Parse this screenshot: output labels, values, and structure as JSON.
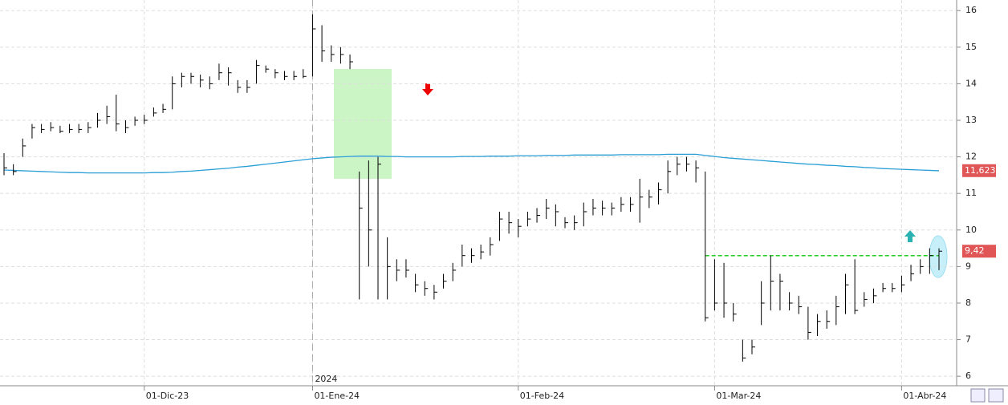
{
  "chart_data": {
    "type": "ohlc",
    "categories": [
      null,
      null,
      null,
      null,
      null,
      null,
      null,
      null,
      null,
      null,
      null,
      null,
      null,
      null,
      null,
      "01-Dic-23",
      null,
      null,
      null,
      null,
      null,
      null,
      null,
      null,
      null,
      null,
      null,
      null,
      null,
      null,
      null,
      null,
      null,
      "01-Ene-24",
      null,
      null,
      null,
      null,
      null,
      null,
      null,
      null,
      null,
      null,
      null,
      null,
      null,
      null,
      null,
      null,
      null,
      null,
      null,
      null,
      null,
      "01-Feb-24",
      null,
      null,
      null,
      null,
      null,
      null,
      null,
      null,
      null,
      null,
      null,
      null,
      null,
      null,
      null,
      null,
      null,
      null,
      null,
      null,
      "01-Mar-24",
      null,
      null,
      null,
      null,
      null,
      null,
      null,
      null,
      null,
      null,
      null,
      null,
      null,
      null,
      null,
      null,
      null,
      null,
      null,
      "01-Abr-24",
      null,
      null,
      null,
      null
    ],
    "high": [
      12.1,
      11.8,
      12.5,
      12.9,
      12.9,
      12.95,
      12.85,
      12.9,
      12.9,
      12.95,
      13.2,
      13.4,
      13.7,
      13.0,
      13.1,
      13.15,
      13.35,
      13.45,
      14.2,
      14.3,
      14.3,
      14.25,
      14.2,
      14.55,
      14.45,
      14.1,
      14.1,
      14.65,
      14.5,
      14.4,
      14.35,
      14.35,
      14.4,
      15.9,
      15.6,
      15.05,
      15.0,
      14.8,
      11.6,
      11.9,
      12.0,
      9.8,
      9.2,
      9.2,
      8.8,
      8.6,
      8.5,
      8.8,
      9.1,
      9.6,
      9.5,
      9.6,
      9.8,
      10.5,
      10.5,
      10.3,
      10.5,
      10.6,
      10.85,
      10.7,
      10.35,
      10.4,
      10.75,
      10.85,
      10.8,
      10.75,
      10.9,
      10.9,
      11.4,
      11.1,
      11.3,
      11.9,
      12.0,
      12.0,
      11.9,
      11.6,
      9.2,
      9.1,
      8.0,
      7.0,
      7.0,
      8.6,
      9.3,
      8.8,
      8.3,
      8.2,
      7.9,
      7.7,
      7.8,
      8.2,
      8.8,
      9.2,
      8.3,
      8.4,
      8.55,
      8.55,
      8.75,
      9.05,
      9.2,
      9.5,
      9.5
    ],
    "low": [
      11.5,
      11.5,
      12.0,
      12.5,
      12.65,
      12.7,
      12.65,
      12.65,
      12.65,
      12.65,
      12.8,
      12.9,
      12.7,
      12.65,
      12.85,
      12.9,
      13.1,
      13.2,
      13.3,
      13.9,
      14.0,
      13.9,
      13.85,
      14.1,
      13.95,
      13.75,
      13.75,
      14.0,
      14.3,
      14.15,
      14.1,
      14.1,
      14.15,
      14.2,
      14.6,
      14.6,
      14.55,
      14.4,
      8.1,
      9.0,
      8.1,
      8.1,
      8.6,
      8.7,
      8.3,
      8.2,
      8.1,
      8.4,
      8.6,
      9.0,
      9.1,
      9.2,
      9.3,
      9.7,
      9.9,
      9.8,
      10.1,
      10.2,
      10.3,
      10.1,
      10.05,
      10.0,
      10.1,
      10.4,
      10.4,
      10.4,
      10.5,
      10.5,
      10.2,
      10.6,
      10.7,
      11.0,
      11.5,
      11.6,
      11.3,
      7.5,
      7.8,
      7.6,
      7.5,
      6.4,
      6.6,
      7.4,
      7.8,
      7.8,
      7.8,
      7.7,
      7.0,
      7.1,
      7.3,
      7.4,
      7.7,
      7.7,
      7.9,
      8.0,
      8.3,
      8.3,
      8.3,
      8.6,
      8.8,
      8.8,
      8.9
    ],
    "close": [
      11.7,
      11.6,
      12.3,
      12.8,
      12.75,
      12.8,
      12.7,
      12.75,
      12.75,
      12.8,
      13.0,
      13.1,
      12.9,
      12.8,
      13.0,
      13.0,
      13.2,
      13.3,
      14.0,
      14.2,
      14.2,
      14.1,
      14.0,
      14.3,
      14.3,
      13.9,
      13.9,
      14.5,
      14.4,
      14.3,
      14.2,
      14.2,
      14.2,
      15.5,
      14.9,
      14.8,
      14.8,
      14.6,
      10.6,
      10.0,
      11.8,
      9.0,
      8.9,
      8.9,
      8.5,
      8.4,
      8.3,
      8.6,
      8.9,
      9.3,
      9.3,
      9.4,
      9.6,
      10.3,
      10.2,
      10.1,
      10.3,
      10.4,
      10.6,
      10.5,
      10.2,
      10.2,
      10.5,
      10.6,
      10.6,
      10.6,
      10.7,
      10.7,
      10.9,
      10.9,
      11.1,
      11.6,
      11.8,
      11.8,
      11.7,
      7.6,
      8.0,
      8.0,
      7.7,
      6.5,
      6.8,
      8.0,
      8.6,
      8.6,
      8.0,
      7.9,
      7.2,
      7.5,
      7.5,
      7.9,
      8.5,
      7.8,
      8.1,
      8.2,
      8.4,
      8.4,
      8.5,
      8.8,
      9.0,
      9.3,
      9.42
    ],
    "color": "#000000",
    "moving_average": {
      "color": "#2a9fd6",
      "values": [
        11.64,
        11.63,
        11.62,
        11.61,
        11.6,
        11.59,
        11.58,
        11.57,
        11.57,
        11.56,
        11.56,
        11.56,
        11.56,
        11.56,
        11.56,
        11.56,
        11.57,
        11.57,
        11.58,
        11.6,
        11.61,
        11.63,
        11.65,
        11.67,
        11.69,
        11.72,
        11.74,
        11.77,
        11.8,
        11.83,
        11.86,
        11.89,
        11.92,
        11.95,
        11.97,
        11.99,
        12.0,
        12.01,
        12.02,
        12.02,
        12.02,
        12.01,
        12.01,
        12.0,
        12.0,
        12.0,
        12.0,
        12.0,
        12.0,
        12.01,
        12.01,
        12.01,
        12.02,
        12.02,
        12.02,
        12.03,
        12.03,
        12.03,
        12.04,
        12.04,
        12.04,
        12.05,
        12.05,
        12.05,
        12.05,
        12.05,
        12.06,
        12.06,
        12.06,
        12.06,
        12.06,
        12.07,
        12.07,
        12.07,
        12.07,
        12.04,
        12.01,
        11.98,
        11.96,
        11.94,
        11.92,
        11.9,
        11.88,
        11.86,
        11.84,
        11.82,
        11.8,
        11.79,
        11.77,
        11.76,
        11.74,
        11.73,
        11.71,
        11.7,
        11.68,
        11.67,
        11.66,
        11.65,
        11.64,
        11.63,
        11.62
      ]
    },
    "resistance": {
      "value": 9.3,
      "color": "#22cc22"
    },
    "year_label": "2024",
    "price_labels": [
      {
        "value": 11.623,
        "label": "11,623"
      },
      {
        "value": 9.42,
        "label": "9,42"
      }
    ],
    "ylim": [
      5.74,
      16.29
    ],
    "yticks": [
      6,
      7,
      8,
      9,
      10,
      11,
      12,
      13,
      14,
      15,
      16
    ],
    "grid": true
  }
}
